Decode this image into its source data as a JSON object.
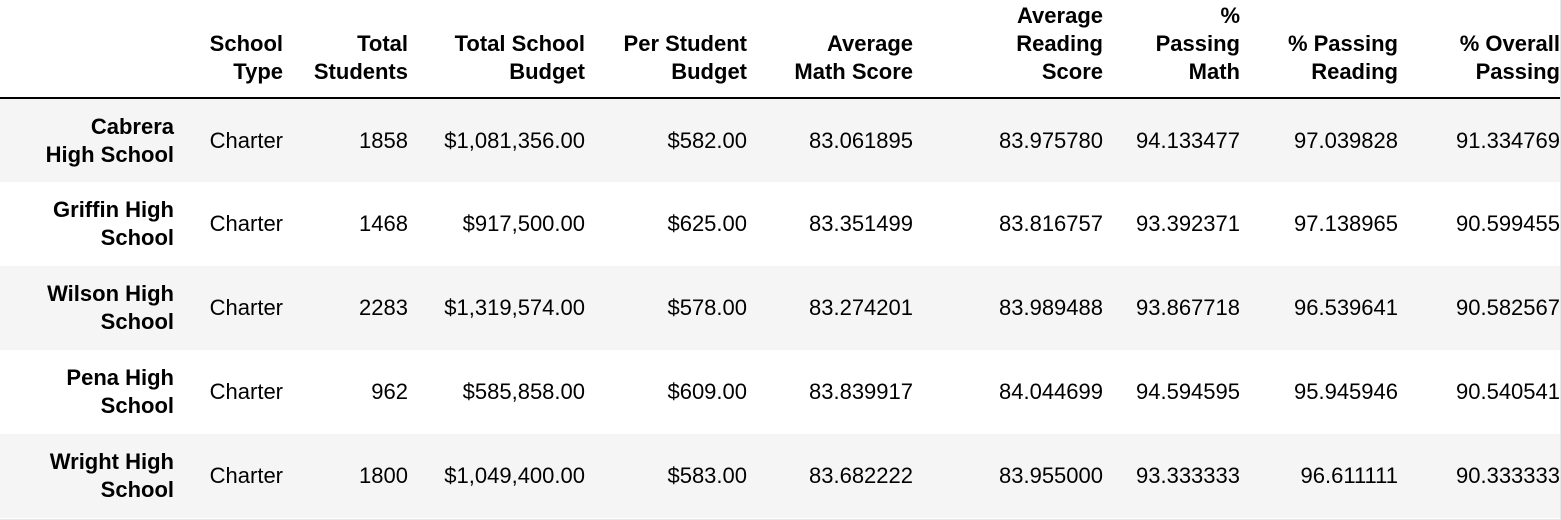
{
  "table": {
    "columns": [
      "",
      "School\nType",
      "Total\nStudents",
      "Total School\nBudget",
      "Per Student\nBudget",
      "Average\nMath Score",
      "Average\nReading\nScore",
      "%\nPassing\nMath",
      "% Passing\nReading",
      "% Overall\nPassing"
    ],
    "rows": [
      {
        "school": "Cabrera\nHigh School",
        "type": "Charter",
        "total_students": "1858",
        "total_budget": "$1,081,356.00",
        "per_student_budget": "$582.00",
        "avg_math": "83.061895",
        "avg_reading": "83.975780",
        "pct_math": "94.133477",
        "pct_reading": "97.039828",
        "pct_overall": "91.334769"
      },
      {
        "school": "Griffin High\nSchool",
        "type": "Charter",
        "total_students": "1468",
        "total_budget": "$917,500.00",
        "per_student_budget": "$625.00",
        "avg_math": "83.351499",
        "avg_reading": "83.816757",
        "pct_math": "93.392371",
        "pct_reading": "97.138965",
        "pct_overall": "90.599455"
      },
      {
        "school": "Wilson High\nSchool",
        "type": "Charter",
        "total_students": "2283",
        "total_budget": "$1,319,574.00",
        "per_student_budget": "$578.00",
        "avg_math": "83.274201",
        "avg_reading": "83.989488",
        "pct_math": "93.867718",
        "pct_reading": "96.539641",
        "pct_overall": "90.582567"
      },
      {
        "school": "Pena High\nSchool",
        "type": "Charter",
        "total_students": "962",
        "total_budget": "$585,858.00",
        "per_student_budget": "$609.00",
        "avg_math": "83.839917",
        "avg_reading": "84.044699",
        "pct_math": "94.594595",
        "pct_reading": "95.945946",
        "pct_overall": "90.540541"
      },
      {
        "school": "Wright High\nSchool",
        "type": "Charter",
        "total_students": "1800",
        "total_budget": "$1,049,400.00",
        "per_student_budget": "$583.00",
        "avg_math": "83.682222",
        "avg_reading": "83.955000",
        "pct_math": "93.333333",
        "pct_reading": "96.611111",
        "pct_overall": "90.333333"
      }
    ]
  },
  "colors": {
    "stripe": "#f5f5f5",
    "header_rule": "#000000",
    "text": "#000000"
  }
}
